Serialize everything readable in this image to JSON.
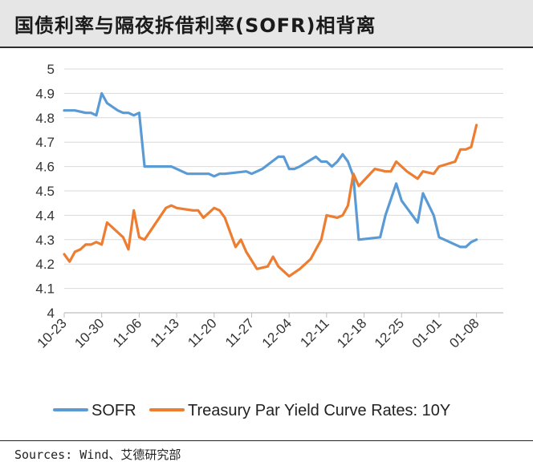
{
  "header": {
    "title": "国债利率与隔夜拆借利率(SOFR)相背离"
  },
  "footer": {
    "source": "Sources: Wind、艾德研究部"
  },
  "colors": {
    "sofr": "#5b9bd5",
    "treasury": "#ed7d31",
    "grid": "#d9d9d9",
    "axis": "#bfbfbf"
  },
  "chart_data": {
    "type": "line",
    "title": "国债利率与隔夜拆借利率(SOFR)相背离",
    "xlabel": "",
    "ylabel": "",
    "ylim": [
      4.0,
      5.0
    ],
    "yticks": [
      "5",
      "4.9",
      "4.8",
      "4.7",
      "4.6",
      "4.5",
      "4.4",
      "4.3",
      "4.2",
      "4.1",
      "4"
    ],
    "xlim": [
      0,
      82
    ],
    "xticks": [
      {
        "x": 0,
        "label": "10-23"
      },
      {
        "x": 7,
        "label": "10-30"
      },
      {
        "x": 14,
        "label": "11-06"
      },
      {
        "x": 21,
        "label": "11-13"
      },
      {
        "x": 28,
        "label": "11-20"
      },
      {
        "x": 35,
        "label": "11-27"
      },
      {
        "x": 42,
        "label": "12-04"
      },
      {
        "x": 49,
        "label": "12-11"
      },
      {
        "x": 56,
        "label": "12-18"
      },
      {
        "x": 63,
        "label": "12-25"
      },
      {
        "x": 70,
        "label": "01-01"
      },
      {
        "x": 77,
        "label": "01-08"
      }
    ],
    "grid": true,
    "legend_position": "bottom",
    "series": [
      {
        "name": "SOFR",
        "color": "#5b9bd5",
        "points": [
          [
            0,
            4.83
          ],
          [
            1,
            4.83
          ],
          [
            2,
            4.83
          ],
          [
            4,
            4.82
          ],
          [
            5,
            4.82
          ],
          [
            6,
            4.81
          ],
          [
            7,
            4.9
          ],
          [
            8,
            4.86
          ],
          [
            10,
            4.83
          ],
          [
            11,
            4.82
          ],
          [
            12,
            4.82
          ],
          [
            13,
            4.81
          ],
          [
            14,
            4.82
          ],
          [
            15,
            4.6
          ],
          [
            20,
            4.6
          ],
          [
            23,
            4.57
          ],
          [
            27,
            4.57
          ],
          [
            28,
            4.56
          ],
          [
            29,
            4.57
          ],
          [
            30,
            4.57
          ],
          [
            34,
            4.58
          ],
          [
            35,
            4.57
          ],
          [
            36,
            4.58
          ],
          [
            37,
            4.59
          ],
          [
            40,
            4.64
          ],
          [
            41,
            4.64
          ],
          [
            42,
            4.59
          ],
          [
            43,
            4.59
          ],
          [
            44,
            4.6
          ],
          [
            47,
            4.64
          ],
          [
            48,
            4.62
          ],
          [
            49,
            4.62
          ],
          [
            50,
            4.6
          ],
          [
            51,
            4.62
          ],
          [
            52,
            4.65
          ],
          [
            53,
            4.62
          ],
          [
            54,
            4.56
          ],
          [
            55,
            4.3
          ],
          [
            59,
            4.31
          ],
          [
            60,
            4.4
          ],
          [
            62,
            4.53
          ],
          [
            63,
            4.46
          ],
          [
            66,
            4.37
          ],
          [
            67,
            4.49
          ],
          [
            69,
            4.4
          ],
          [
            70,
            4.31
          ],
          [
            71,
            4.3
          ],
          [
            74,
            4.27
          ],
          [
            75,
            4.27
          ],
          [
            76,
            4.29
          ],
          [
            77,
            4.3
          ]
        ]
      },
      {
        "name": "Treasury Par Yield Curve Rates: 10Y",
        "color": "#ed7d31",
        "points": [
          [
            0,
            4.24
          ],
          [
            1,
            4.21
          ],
          [
            2,
            4.25
          ],
          [
            3,
            4.26
          ],
          [
            4,
            4.28
          ],
          [
            5,
            4.28
          ],
          [
            6,
            4.29
          ],
          [
            7,
            4.28
          ],
          [
            8,
            4.37
          ],
          [
            10,
            4.33
          ],
          [
            11,
            4.31
          ],
          [
            12,
            4.26
          ],
          [
            13,
            4.42
          ],
          [
            14,
            4.31
          ],
          [
            15,
            4.3
          ],
          [
            19,
            4.43
          ],
          [
            20,
            4.44
          ],
          [
            21,
            4.43
          ],
          [
            24,
            4.42
          ],
          [
            25,
            4.42
          ],
          [
            26,
            4.39
          ],
          [
            27,
            4.41
          ],
          [
            28,
            4.43
          ],
          [
            29,
            4.42
          ],
          [
            30,
            4.39
          ],
          [
            32,
            4.27
          ],
          [
            33,
            4.3
          ],
          [
            34,
            4.25
          ],
          [
            36,
            4.18
          ],
          [
            38,
            4.19
          ],
          [
            39,
            4.23
          ],
          [
            40,
            4.19
          ],
          [
            42,
            4.15
          ],
          [
            44,
            4.18
          ],
          [
            46,
            4.22
          ],
          [
            47,
            4.26
          ],
          [
            48,
            4.3
          ],
          [
            49,
            4.4
          ],
          [
            51,
            4.39
          ],
          [
            52,
            4.4
          ],
          [
            53,
            4.44
          ],
          [
            54,
            4.57
          ],
          [
            55,
            4.52
          ],
          [
            58,
            4.59
          ],
          [
            60,
            4.58
          ],
          [
            61,
            4.58
          ],
          [
            62,
            4.62
          ],
          [
            64,
            4.58
          ],
          [
            66,
            4.55
          ],
          [
            67,
            4.58
          ],
          [
            69,
            4.57
          ],
          [
            70,
            4.6
          ],
          [
            73,
            4.62
          ],
          [
            74,
            4.67
          ],
          [
            75,
            4.67
          ],
          [
            76,
            4.68
          ],
          [
            77,
            4.77
          ]
        ]
      }
    ]
  }
}
